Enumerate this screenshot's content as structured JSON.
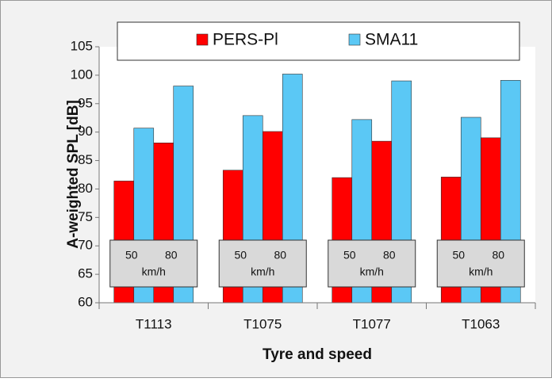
{
  "chart_data": {
    "type": "grouped-bar",
    "y_label": "A-weighted SPL [dB]",
    "x_label": "Tyre and speed",
    "categories": [
      "T1113",
      "T1075",
      "T1077",
      "T1063"
    ],
    "speeds": [
      "50",
      "80"
    ],
    "speed_unit": "km/h",
    "series": [
      {
        "name": "PERS-Pl",
        "color": "#ff0000",
        "values": [
          [
            81.4,
            88.1
          ],
          [
            83.3,
            90.1
          ],
          [
            82.0,
            88.4
          ],
          [
            82.1,
            89.0
          ]
        ]
      },
      {
        "name": "SMA11",
        "color": "#5bc8f5",
        "values": [
          [
            90.7,
            98.1
          ],
          [
            92.9,
            100.2
          ],
          [
            92.2,
            99.0
          ],
          [
            92.6,
            99.1
          ]
        ]
      }
    ],
    "ylim": [
      60,
      105
    ],
    "yticks": [
      60,
      65,
      70,
      75,
      80,
      85,
      90,
      95,
      100,
      105
    ],
    "grid": false,
    "legend": "top"
  }
}
